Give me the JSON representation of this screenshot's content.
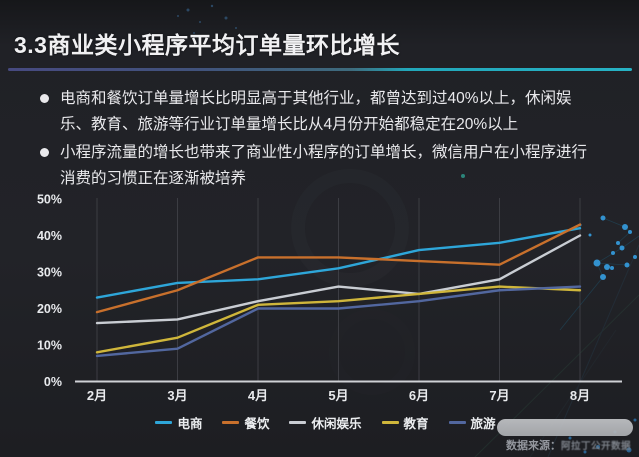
{
  "header": {
    "title": "3.3商业类小程序平均订单量环比增长"
  },
  "bullets": [
    "电商和餐饮订单量增长比明显高于其他行业，都曾达到过40%以上，休闲娱乐、教育、旅游等行业订单量增长比从4月份开始都稳定在20%以上",
    "小程序流量的增长也带来了商业性小程序的订单增长，微信用户在小程序进行消费的习惯正在逐渐被培养"
  ],
  "chart_data": {
    "type": "line",
    "categories": [
      "2月",
      "3月",
      "4月",
      "5月",
      "6月",
      "7月",
      "8月"
    ],
    "series": [
      {
        "name": "电商",
        "color": "#2ea6d9",
        "values": [
          23,
          27,
          28,
          31,
          36,
          38,
          42
        ]
      },
      {
        "name": "餐饮",
        "color": "#c8702c",
        "values": [
          19,
          25,
          34,
          34,
          33,
          32,
          43
        ]
      },
      {
        "name": "休闲娱乐",
        "color": "#c9cdd3",
        "values": [
          16,
          17,
          22,
          26,
          24,
          28,
          40
        ]
      },
      {
        "name": "教育",
        "color": "#cfb63b",
        "values": [
          8,
          12,
          21,
          22,
          24,
          26,
          25
        ]
      },
      {
        "name": "旅游",
        "color": "#52679f",
        "values": [
          7,
          9,
          20,
          20,
          22,
          25,
          26
        ]
      }
    ],
    "y_ticks": [
      0,
      10,
      20,
      30,
      40,
      50
    ],
    "y_tick_suffix": "%",
    "ylim": [
      0,
      50
    ],
    "xlabel": "",
    "ylabel": "",
    "title": "",
    "grid": "faint-vertical-month-lines",
    "legend_position": "bottom-center"
  },
  "footer": {
    "source_label": "数据来源：",
    "source_value": "阿拉丁公开数据"
  },
  "theme": {
    "background": "#202126",
    "accent_cyan": "#27b2c4",
    "accent_indigo": "#474a80",
    "axis_color": "#cfd1d5",
    "gridline_color": "#3c3d43"
  }
}
